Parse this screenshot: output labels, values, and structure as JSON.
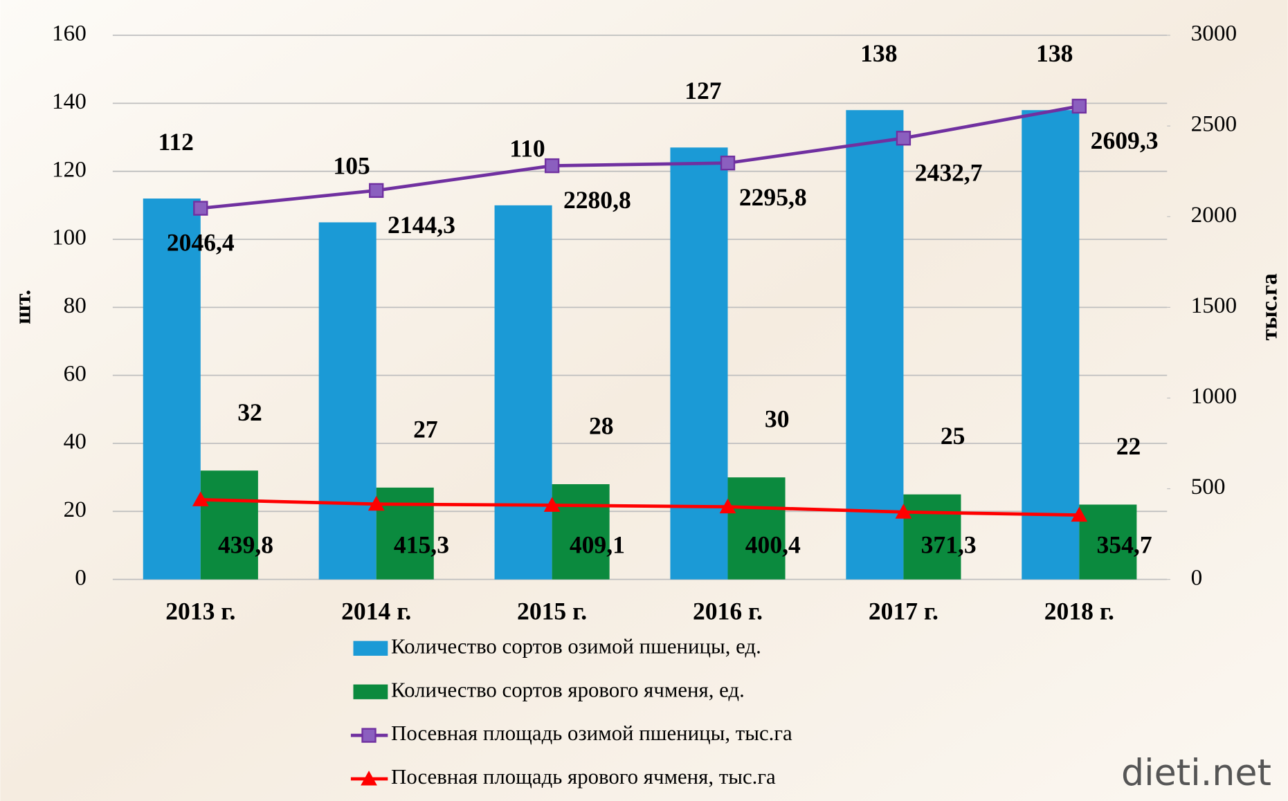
{
  "chart_data": {
    "type": "bar-line",
    "categories": [
      "2013 г.",
      "2014 г.",
      "2015 г.",
      "2016 г.",
      "2017 г.",
      "2018 г."
    ],
    "y_label": "шт.",
    "y2_label": "тыс.га",
    "ylim": [
      0,
      160
    ],
    "yticks": [
      0,
      20,
      40,
      60,
      80,
      100,
      120,
      140,
      160
    ],
    "y2lim": [
      0,
      3000
    ],
    "y2ticks": [
      0,
      500,
      1000,
      1500,
      2000,
      2500,
      3000
    ],
    "series": [
      {
        "name": "Количество сортов озимой пшеницы, ед.",
        "kind": "bar",
        "color": "#1b9ad6",
        "values": [
          112,
          105,
          110,
          127,
          138,
          138
        ]
      },
      {
        "name": "Количество сортов ярового ячменя, ед.",
        "kind": "bar",
        "color": "#0b8a3e",
        "values": [
          32,
          27,
          28,
          30,
          25,
          22
        ]
      },
      {
        "name": "Посевная площадь озимой пшеницы, тыс.га",
        "kind": "line",
        "marker": "square",
        "axis": "y2",
        "color": "#7030a0",
        "values": [
          2046.4,
          2144.3,
          2280.8,
          2295.8,
          2432.7,
          2609.3
        ],
        "value_labels": [
          "2046,4",
          "2144,3",
          "2280,8",
          "2295,8",
          "2432,7",
          "2609,3"
        ]
      },
      {
        "name": "Посевная площадь ярового ячменя, тыс.га",
        "kind": "line",
        "marker": "triangle",
        "axis": "y2",
        "color": "#ff0000",
        "values": [
          439.8,
          415.3,
          409.1,
          400.4,
          371.3,
          354.7
        ],
        "value_labels": [
          "439,8",
          "415,3",
          "409,1",
          "400,4",
          "371,3",
          "354,7"
        ]
      }
    ],
    "grid": true
  },
  "watermark": "dieti.net"
}
